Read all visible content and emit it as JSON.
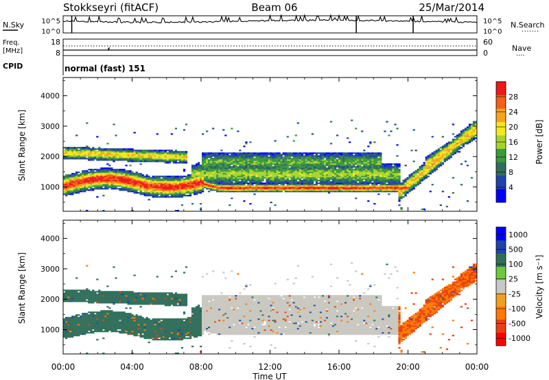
{
  "header": {
    "station": "Stokkseyri (fitACF)",
    "beam": "Beam 06",
    "date": "25/Mar/2014"
  },
  "panels": {
    "nsky": {
      "left_label": "N.Sky",
      "left_ticks": [
        "10^5",
        "10^0"
      ],
      "right_ticks": [
        "10^5",
        "10^0"
      ],
      "right_label": "N.Search",
      "right_dots": "......."
    },
    "freq": {
      "left_label_1": "Freq.",
      "left_label_2": "[MHz]",
      "left_ticks": [
        "18",
        "8"
      ],
      "right_ticks": [
        "60",
        "0"
      ],
      "right_label": "Nave",
      "right_dots": "...."
    },
    "cpid": {
      "label": "CPID",
      "value": "normal (fast) 151"
    }
  },
  "colors": {
    "power_scale": [
      "#0000ff",
      "#1f44a8",
      "#2f6e5a",
      "#3a9a3c",
      "#a8d42a",
      "#f6e81f",
      "#f8a31d",
      "#f4601a",
      "#ee1818"
    ],
    "velocity_scale": [
      "#0000ff",
      "#1f44a8",
      "#2f6e5a",
      "#6ec83e",
      "#c8c8c8",
      "#f0a020",
      "#ff7a00",
      "#e84010",
      "#ff0000"
    ],
    "ground_scatter": "#c8c8c0"
  },
  "chart_data": [
    {
      "type": "heatmap",
      "name": "power",
      "ylabel": "Slant Range [km]",
      "y_ticks": [
        "1000",
        "2000",
        "3000",
        "4000"
      ],
      "ylim": [
        200,
        4600
      ],
      "colorbar_label": "Power [dB]",
      "colorbar_ticks": [
        "4",
        "8",
        "12",
        "16",
        "20",
        "24",
        "28"
      ],
      "colorbar_range": [
        0,
        32
      ]
    },
    {
      "type": "heatmap",
      "name": "velocity",
      "ylabel": "Slant Range [km]",
      "y_ticks": [
        "1000",
        "2000",
        "3000",
        "4000"
      ],
      "ylim": [
        200,
        4600
      ],
      "colorbar_label": "Velocity [m s⁻¹]",
      "colorbar_ticks": [
        "1000",
        "500",
        "100",
        "25",
        "-25",
        "-100",
        "-500",
        "-1000"
      ],
      "x_ticks": [
        "00:00",
        "04:00",
        "08:00",
        "12:00",
        "16:00",
        "20:00",
        "00:00"
      ],
      "xlabel": "Time UT"
    }
  ]
}
